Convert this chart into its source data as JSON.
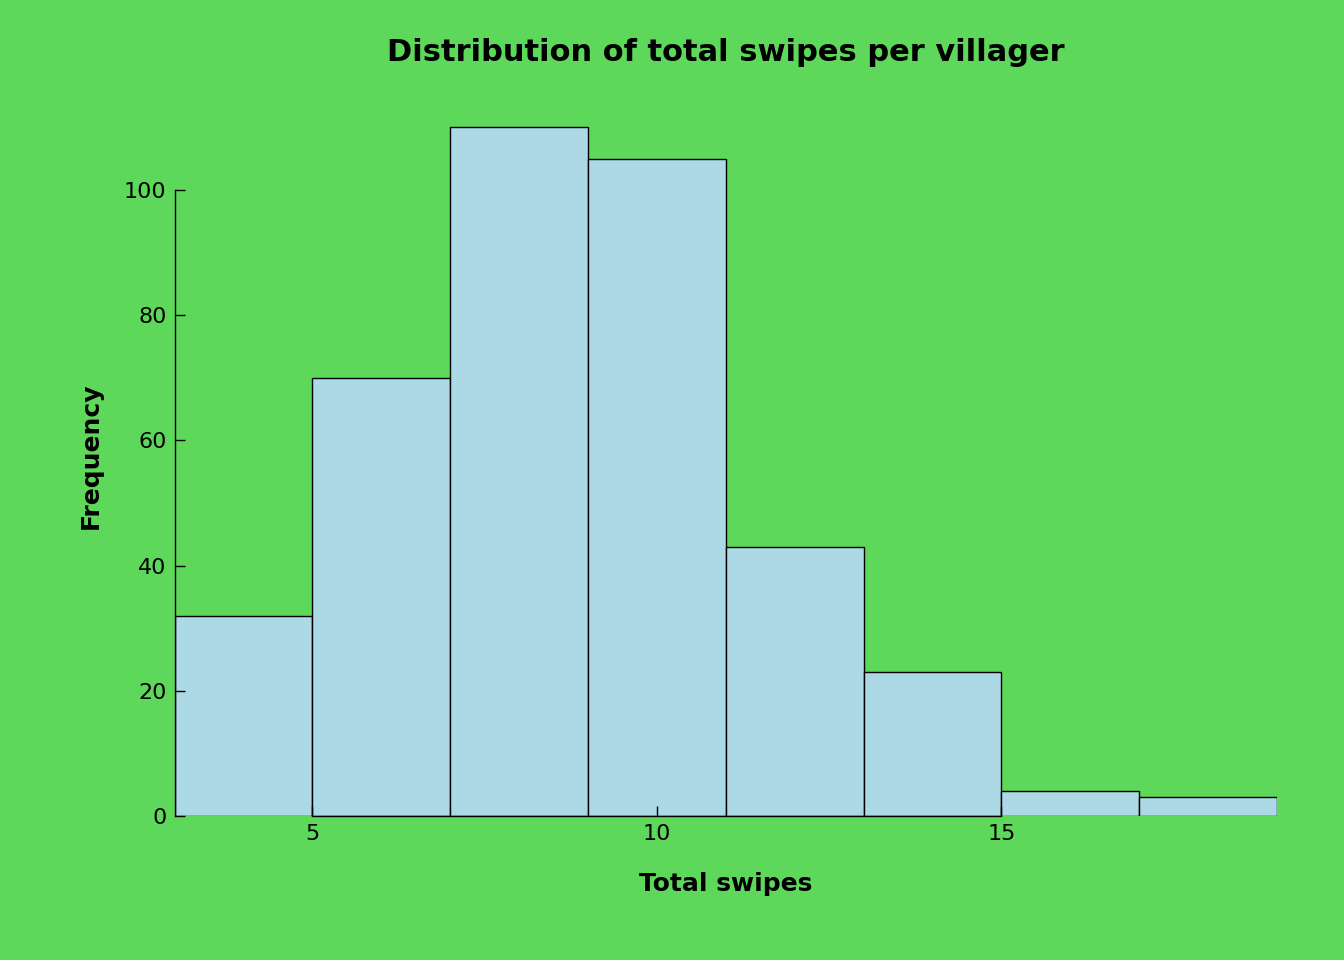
{
  "title": "Distribution of total swipes per villager",
  "xlabel": "Total swipes",
  "ylabel": "Frequency",
  "background_color": "#5DD85A",
  "bar_color": "#ADD8E6",
  "bar_edge_color": "#000000",
  "bar_edge_width": 1.0,
  "bin_edges": [
    3,
    5,
    7,
    9,
    11,
    13,
    15,
    17,
    19
  ],
  "frequencies": [
    32,
    70,
    110,
    105,
    43,
    23,
    4,
    3
  ],
  "yticks": [
    0,
    20,
    40,
    60,
    80,
    100
  ],
  "xticks": [
    5,
    10,
    15
  ],
  "xlim": [
    3,
    19
  ],
  "ylim": [
    0,
    115
  ],
  "title_fontsize": 22,
  "label_fontsize": 18,
  "tick_fontsize": 16,
  "title_fontweight": "bold",
  "label_fontweight": "bold",
  "figsize": [
    13.44,
    9.6
  ],
  "dpi": 100
}
